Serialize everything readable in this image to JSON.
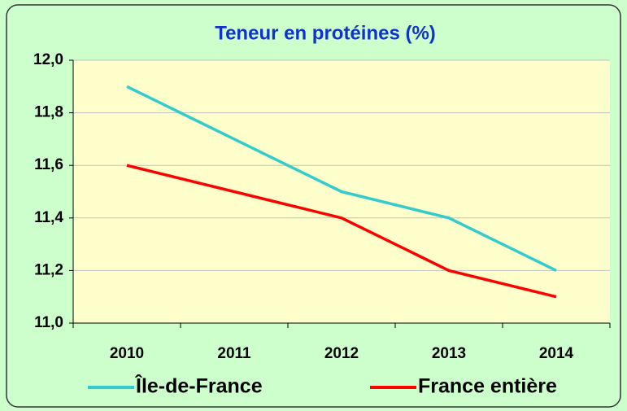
{
  "chart_data": {
    "type": "line",
    "title": "Teneur en protéines (%)",
    "categories": [
      "2010",
      "2011",
      "2012",
      "2013",
      "2014"
    ],
    "series": [
      {
        "name": "Île-de-France",
        "color": "#33cccc",
        "values": [
          11.9,
          11.7,
          11.5,
          11.4,
          11.2
        ]
      },
      {
        "name": "France entière",
        "color": "#ff0000",
        "values": [
          11.6,
          11.5,
          11.4,
          11.2,
          11.1
        ]
      }
    ],
    "ylim": [
      11.0,
      12.0
    ],
    "yticks": [
      {
        "value": 11.0,
        "label": "11,0"
      },
      {
        "value": 11.2,
        "label": "11,2"
      },
      {
        "value": 11.4,
        "label": "11,4"
      },
      {
        "value": 11.6,
        "label": "11,6"
      },
      {
        "value": 11.8,
        "label": "11,8"
      },
      {
        "value": 12.0,
        "label": "12,0"
      }
    ],
    "grid": true,
    "legend": "bottom"
  }
}
